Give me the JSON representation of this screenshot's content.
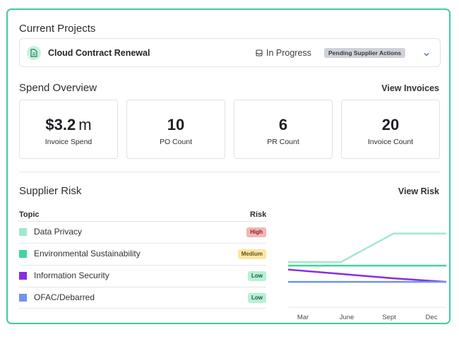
{
  "current_projects": {
    "heading": "Current Projects",
    "project": {
      "icon": "document-icon",
      "name": "Cloud Contract Renewal",
      "status_icon": "inbox-icon",
      "status": "In Progress",
      "badge": "Pending Supplier Actions",
      "expand_icon": "chevron-down-icon"
    }
  },
  "spend_overview": {
    "heading": "Spend Overview",
    "link": "View Invoices",
    "stats": [
      {
        "value": "$3.2",
        "unit": "m",
        "label": "Invoice Spend"
      },
      {
        "value": "10",
        "unit": "",
        "label": "PO Count"
      },
      {
        "value": "6",
        "unit": "",
        "label": "PR Count"
      },
      {
        "value": "20",
        "unit": "",
        "label": "Invoice Count"
      }
    ]
  },
  "supplier_risk": {
    "heading": "Supplier Risk",
    "link": "View Risk",
    "columns": {
      "topic": "Topic",
      "risk": "Risk"
    },
    "rows": [
      {
        "topic": "Data Privacy",
        "risk": "High",
        "swatch": "#9fe9cc",
        "badge_bg": "#f8b4b4",
        "badge_fg": "#7a2424"
      },
      {
        "topic": "Environmental Sustainability",
        "risk": "Medium",
        "swatch": "#3fd69c",
        "badge_bg": "#fbe6a6",
        "badge_fg": "#6a5314"
      },
      {
        "topic": "Information Security",
        "risk": "Low",
        "swatch": "#8a2be2",
        "badge_bg": "#b6f0d6",
        "badge_fg": "#1d5a41"
      },
      {
        "topic": "OFAC/Debarred",
        "risk": "Low",
        "swatch": "#6f93f0",
        "badge_bg": "#b6f0d6",
        "badge_fg": "#1d5a41"
      }
    ]
  },
  "chart_data": {
    "type": "line",
    "categories": [
      "Mar",
      "June",
      "Sept",
      "Dec"
    ],
    "series": [
      {
        "color": "#9fe9cc",
        "values": [
          0.25,
          0.25,
          0.9,
          0.9
        ]
      },
      {
        "color": "#3fd69c",
        "values": [
          0.17,
          0.17,
          0.17,
          0.17
        ]
      },
      {
        "color": "#8a2be2",
        "values": [
          0.08,
          -0.02,
          -0.12,
          -0.2
        ]
      },
      {
        "color": "#6f93f0",
        "values": [
          -0.2,
          -0.2,
          -0.2,
          -0.2
        ]
      }
    ],
    "ylim": [
      -0.6,
      1.2
    ],
    "grid": false
  }
}
